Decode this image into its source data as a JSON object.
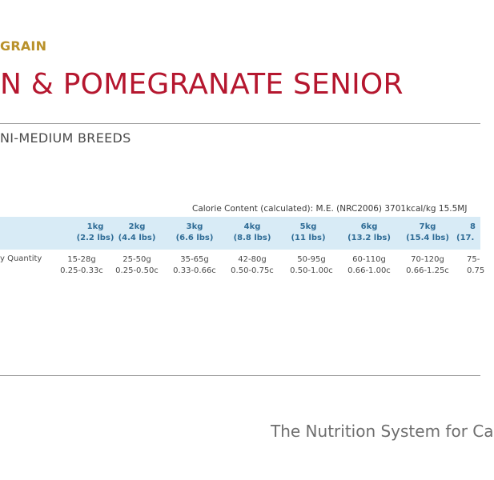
{
  "header": {
    "grain_label": "GRAIN",
    "title": "N & POMEGRANATE SENIOR",
    "breeds": "NI-MEDIUM BREEDS"
  },
  "calorie_content": "Calorie Content (calculated): M.E. (NRC2006) 3701kcal/kg  15.5MJ",
  "table": {
    "columns": [
      {
        "weight": "1kg",
        "lbs": "(2.2 lbs)"
      },
      {
        "weight": "2kg",
        "lbs": "(4.4 lbs)"
      },
      {
        "weight": "3kg",
        "lbs": "(6.6 lbs)"
      },
      {
        "weight": "4kg",
        "lbs": "(8.8 lbs)"
      },
      {
        "weight": "5kg",
        "lbs": "(11 lbs)"
      },
      {
        "weight": "6kg",
        "lbs": "(13.2 lbs)"
      },
      {
        "weight": "7kg",
        "lbs": "(15.4 lbs)"
      },
      {
        "weight": "8",
        "lbs": "(17."
      }
    ],
    "row_label": "y Quantity",
    "values": [
      {
        "grams": "15-28g",
        "cups": "0.25-0.33c"
      },
      {
        "grams": "25-50g",
        "cups": "0.25-0.50c"
      },
      {
        "grams": "35-65g",
        "cups": "0.33-0.66c"
      },
      {
        "grams": "42-80g",
        "cups": "0.50-0.75c"
      },
      {
        "grams": "50-95g",
        "cups": "0.50-1.00c"
      },
      {
        "grams": "60-110g",
        "cups": "0.66-1.00c"
      },
      {
        "grams": "70-120g",
        "cups": "0.66-1.25c"
      },
      {
        "grams": "75-",
        "cups": "0.75"
      }
    ]
  },
  "tagline": "The Nutrition System for Ca"
}
